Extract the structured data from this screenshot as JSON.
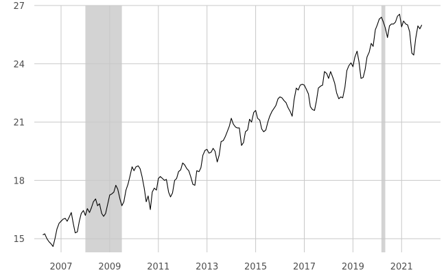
{
  "chart_data": {
    "type": "line",
    "title": "",
    "xlabel": "",
    "ylabel": "",
    "xlim": [
      2005.9,
      2022.6
    ],
    "ylim": [
      14.3,
      27.0
    ],
    "x_ticks": [
      2007,
      2009,
      2011,
      2013,
      2015,
      2017,
      2019,
      2021
    ],
    "y_ticks": [
      15,
      18,
      21,
      24,
      27
    ],
    "grid": true,
    "legend": "none",
    "colors": {
      "line": "#000000",
      "grid": "#c8c8c8",
      "shade": "#d3d3d3",
      "tick_text": "#4d4d4d"
    },
    "shaded_periods": [
      {
        "start": 2008.0,
        "end": 2009.5
      },
      {
        "start": 2020.17,
        "end": 2020.33
      }
    ],
    "series": [
      {
        "points": [
          [
            2006.25,
            15.2
          ],
          [
            2006.33,
            15.25
          ],
          [
            2006.42,
            15.0
          ],
          [
            2006.5,
            14.85
          ],
          [
            2006.58,
            14.75
          ],
          [
            2006.67,
            14.6
          ],
          [
            2006.75,
            15.0
          ],
          [
            2006.83,
            15.5
          ],
          [
            2006.92,
            15.8
          ],
          [
            2007.0,
            15.9
          ],
          [
            2007.08,
            16.0
          ],
          [
            2007.17,
            16.05
          ],
          [
            2007.25,
            15.9
          ],
          [
            2007.33,
            16.1
          ],
          [
            2007.42,
            16.35
          ],
          [
            2007.5,
            15.8
          ],
          [
            2007.58,
            15.3
          ],
          [
            2007.67,
            15.35
          ],
          [
            2007.75,
            15.9
          ],
          [
            2007.83,
            16.3
          ],
          [
            2007.92,
            16.45
          ],
          [
            2008.0,
            16.2
          ],
          [
            2008.08,
            16.55
          ],
          [
            2008.17,
            16.35
          ],
          [
            2008.25,
            16.6
          ],
          [
            2008.33,
            16.9
          ],
          [
            2008.42,
            17.05
          ],
          [
            2008.5,
            16.7
          ],
          [
            2008.58,
            16.8
          ],
          [
            2008.67,
            16.3
          ],
          [
            2008.75,
            16.15
          ],
          [
            2008.83,
            16.3
          ],
          [
            2008.92,
            16.8
          ],
          [
            2009.0,
            17.25
          ],
          [
            2009.08,
            17.3
          ],
          [
            2009.17,
            17.4
          ],
          [
            2009.25,
            17.75
          ],
          [
            2009.33,
            17.55
          ],
          [
            2009.42,
            17.05
          ],
          [
            2009.5,
            16.7
          ],
          [
            2009.58,
            16.9
          ],
          [
            2009.67,
            17.5
          ],
          [
            2009.75,
            17.8
          ],
          [
            2009.83,
            18.2
          ],
          [
            2009.92,
            18.7
          ],
          [
            2010.0,
            18.5
          ],
          [
            2010.08,
            18.7
          ],
          [
            2010.17,
            18.75
          ],
          [
            2010.25,
            18.6
          ],
          [
            2010.33,
            18.2
          ],
          [
            2010.42,
            17.6
          ],
          [
            2010.5,
            16.9
          ],
          [
            2010.58,
            17.2
          ],
          [
            2010.67,
            16.5
          ],
          [
            2010.75,
            17.4
          ],
          [
            2010.83,
            17.6
          ],
          [
            2010.92,
            17.5
          ],
          [
            2011.0,
            18.1
          ],
          [
            2011.08,
            18.2
          ],
          [
            2011.17,
            18.1
          ],
          [
            2011.25,
            18.0
          ],
          [
            2011.33,
            18.05
          ],
          [
            2011.42,
            17.4
          ],
          [
            2011.5,
            17.15
          ],
          [
            2011.58,
            17.35
          ],
          [
            2011.67,
            18.0
          ],
          [
            2011.75,
            18.1
          ],
          [
            2011.83,
            18.45
          ],
          [
            2011.92,
            18.55
          ],
          [
            2012.0,
            18.9
          ],
          [
            2012.08,
            18.8
          ],
          [
            2012.17,
            18.6
          ],
          [
            2012.25,
            18.5
          ],
          [
            2012.33,
            18.2
          ],
          [
            2012.42,
            17.8
          ],
          [
            2012.5,
            17.75
          ],
          [
            2012.58,
            18.5
          ],
          [
            2012.67,
            18.45
          ],
          [
            2012.75,
            18.65
          ],
          [
            2012.83,
            19.3
          ],
          [
            2012.92,
            19.55
          ],
          [
            2013.0,
            19.6
          ],
          [
            2013.08,
            19.4
          ],
          [
            2013.17,
            19.45
          ],
          [
            2013.25,
            19.65
          ],
          [
            2013.33,
            19.5
          ],
          [
            2013.42,
            18.95
          ],
          [
            2013.5,
            19.3
          ],
          [
            2013.58,
            20.0
          ],
          [
            2013.67,
            20.05
          ],
          [
            2013.75,
            20.25
          ],
          [
            2013.83,
            20.5
          ],
          [
            2013.92,
            20.8
          ],
          [
            2014.0,
            21.2
          ],
          [
            2014.08,
            20.9
          ],
          [
            2014.17,
            20.75
          ],
          [
            2014.25,
            20.7
          ],
          [
            2014.33,
            20.7
          ],
          [
            2014.42,
            19.8
          ],
          [
            2014.5,
            19.95
          ],
          [
            2014.58,
            20.5
          ],
          [
            2014.67,
            20.6
          ],
          [
            2014.75,
            21.15
          ],
          [
            2014.83,
            21.0
          ],
          [
            2014.92,
            21.5
          ],
          [
            2015.0,
            21.6
          ],
          [
            2015.08,
            21.2
          ],
          [
            2015.17,
            21.1
          ],
          [
            2015.25,
            20.65
          ],
          [
            2015.33,
            20.5
          ],
          [
            2015.42,
            20.6
          ],
          [
            2015.5,
            21.0
          ],
          [
            2015.58,
            21.3
          ],
          [
            2015.67,
            21.55
          ],
          [
            2015.75,
            21.7
          ],
          [
            2015.83,
            21.85
          ],
          [
            2015.92,
            22.2
          ],
          [
            2016.0,
            22.3
          ],
          [
            2016.08,
            22.25
          ],
          [
            2016.17,
            22.1
          ],
          [
            2016.25,
            22.0
          ],
          [
            2016.33,
            21.75
          ],
          [
            2016.42,
            21.55
          ],
          [
            2016.5,
            21.3
          ],
          [
            2016.58,
            22.15
          ],
          [
            2016.67,
            22.75
          ],
          [
            2016.75,
            22.65
          ],
          [
            2016.83,
            22.9
          ],
          [
            2016.92,
            22.95
          ],
          [
            2017.0,
            22.9
          ],
          [
            2017.08,
            22.7
          ],
          [
            2017.17,
            22.45
          ],
          [
            2017.25,
            21.8
          ],
          [
            2017.33,
            21.65
          ],
          [
            2017.42,
            21.6
          ],
          [
            2017.5,
            22.1
          ],
          [
            2017.58,
            22.75
          ],
          [
            2017.67,
            22.85
          ],
          [
            2017.75,
            22.9
          ],
          [
            2017.83,
            23.6
          ],
          [
            2017.92,
            23.5
          ],
          [
            2018.0,
            23.25
          ],
          [
            2018.08,
            23.6
          ],
          [
            2018.17,
            23.3
          ],
          [
            2018.25,
            23.0
          ],
          [
            2018.33,
            22.5
          ],
          [
            2018.42,
            22.2
          ],
          [
            2018.5,
            22.3
          ],
          [
            2018.58,
            22.25
          ],
          [
            2018.67,
            22.8
          ],
          [
            2018.75,
            23.65
          ],
          [
            2018.83,
            23.9
          ],
          [
            2018.92,
            24.05
          ],
          [
            2019.0,
            23.85
          ],
          [
            2019.08,
            24.35
          ],
          [
            2019.17,
            24.65
          ],
          [
            2019.25,
            24.1
          ],
          [
            2019.33,
            23.25
          ],
          [
            2019.42,
            23.3
          ],
          [
            2019.5,
            23.7
          ],
          [
            2019.58,
            24.35
          ],
          [
            2019.67,
            24.6
          ],
          [
            2019.75,
            25.05
          ],
          [
            2019.83,
            24.9
          ],
          [
            2019.92,
            25.75
          ],
          [
            2020.0,
            26.0
          ],
          [
            2020.08,
            26.3
          ],
          [
            2020.17,
            26.4
          ],
          [
            2020.25,
            26.15
          ],
          [
            2020.33,
            25.85
          ],
          [
            2020.42,
            25.35
          ],
          [
            2020.5,
            25.95
          ],
          [
            2020.58,
            26.05
          ],
          [
            2020.67,
            26.05
          ],
          [
            2020.75,
            26.15
          ],
          [
            2020.83,
            26.45
          ],
          [
            2020.92,
            26.55
          ],
          [
            2021.0,
            25.9
          ],
          [
            2021.08,
            26.2
          ],
          [
            2021.17,
            26.05
          ],
          [
            2021.25,
            26.0
          ],
          [
            2021.33,
            25.65
          ],
          [
            2021.42,
            24.55
          ],
          [
            2021.5,
            24.45
          ],
          [
            2021.58,
            25.3
          ],
          [
            2021.67,
            25.95
          ],
          [
            2021.75,
            25.8
          ],
          [
            2021.83,
            26.0
          ]
        ]
      }
    ]
  }
}
